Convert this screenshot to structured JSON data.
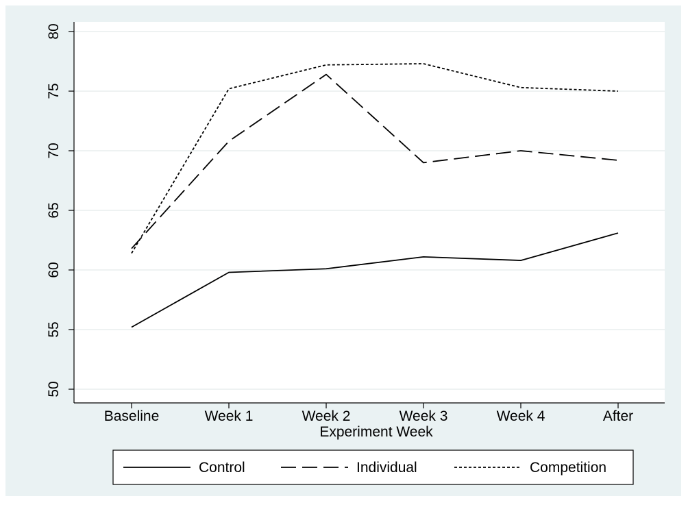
{
  "chart_data": {
    "type": "line",
    "title": "",
    "xlabel": "Experiment Week",
    "ylabel": "",
    "categories": [
      "Baseline",
      "Week 1",
      "Week 2",
      "Week 3",
      "Week 4",
      "After"
    ],
    "ylim": [
      50,
      80
    ],
    "yticks": [
      50,
      55,
      60,
      65,
      70,
      75,
      80
    ],
    "grid": true,
    "legend_placement": "bottom",
    "series": [
      {
        "name": "Control",
        "style": "solid",
        "color": "#000000",
        "values": [
          55.2,
          59.8,
          60.1,
          61.1,
          60.8,
          63.1
        ]
      },
      {
        "name": "Individual",
        "style": "dashed",
        "color": "#000000",
        "values": [
          61.8,
          70.8,
          76.4,
          69.0,
          70.0,
          69.2
        ]
      },
      {
        "name": "Competition",
        "style": "dotted",
        "color": "#000000",
        "values": [
          61.4,
          75.2,
          77.2,
          77.3,
          75.3,
          75.0
        ]
      }
    ],
    "colors": {
      "outer_background": "#eaf2f3",
      "plot_background": "#ffffff",
      "gridline": "#e8eeee",
      "ink": "#000000"
    }
  }
}
